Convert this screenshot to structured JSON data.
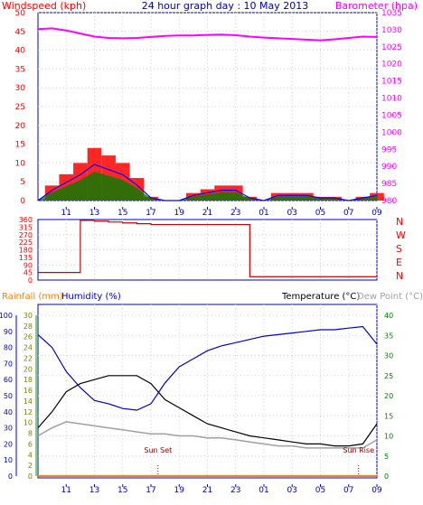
{
  "colors": {
    "windspeed": "#ff0000",
    "barometer": "#ff00ff",
    "wind_blue": "#0000ff",
    "wind_green": "#008000",
    "title": "#0000aa",
    "rainfall": "#ff8000",
    "humidity": "#0000cc",
    "temperature": "#000000",
    "dewpoint": "#a0a0a0",
    "frame": "#0000c0",
    "axis_left": "#808000",
    "direction_labels": "#ff0000"
  },
  "header": {
    "title": "24 hour graph day : 10 May 2013",
    "windspeed_label": "Windspeed (kph)",
    "barometer_label": "Barometer (hpa)"
  },
  "x_ticks": [
    "11",
    "13",
    "15",
    "17",
    "19",
    "21",
    "23",
    "01",
    "03",
    "05",
    "07",
    "09"
  ],
  "chart_data": [
    {
      "type": "line",
      "title": "24 hour graph day : 10 May 2013",
      "ylabel": "Windspeed (kph)",
      "y2label": "Barometer (hpa)",
      "ylim": [
        0,
        50
      ],
      "y2lim": [
        980,
        1035
      ],
      "y_ticks": [
        0,
        5,
        10,
        15,
        20,
        25,
        30,
        35,
        40,
        45,
        50
      ],
      "y2_ticks": [
        980,
        985,
        990,
        995,
        1000,
        1005,
        1010,
        1015,
        1020,
        1025,
        1030,
        1035
      ],
      "x_hours": [
        9,
        10,
        11,
        12,
        13,
        14,
        15,
        16,
        17,
        18,
        19,
        20,
        21,
        22,
        23,
        24,
        25,
        26,
        27,
        28,
        29,
        30,
        31,
        32,
        33
      ],
      "series": [
        {
          "name": "Windspeed (kph)",
          "values": [
            0,
            4,
            7,
            10,
            14,
            12,
            10,
            6,
            1,
            0,
            0,
            2,
            3,
            4,
            4,
            1,
            0,
            2,
            2,
            2,
            1,
            1,
            0,
            1,
            2
          ]
        },
        {
          "name": "Barometer (hpa)",
          "values": [
            1030.2,
            1030.4,
            1029.8,
            1028.9,
            1028.0,
            1027.6,
            1027.5,
            1027.6,
            1027.9,
            1028.2,
            1028.3,
            1028.3,
            1028.5,
            1028.6,
            1028.4,
            1028.0,
            1027.7,
            1027.5,
            1027.3,
            1027.1,
            1026.9,
            1027.2,
            1027.6,
            1028.0,
            1027.9
          ]
        }
      ]
    },
    {
      "type": "line",
      "ylim": [
        0,
        360
      ],
      "y_ticks": [
        0,
        45,
        90,
        135,
        180,
        225,
        270,
        315,
        360
      ],
      "direction_labels": [
        "N",
        "W",
        "S",
        "E",
        "N"
      ],
      "x_hours": [
        9,
        10,
        11,
        12,
        13,
        14,
        15,
        16,
        17,
        18,
        19,
        20,
        21,
        22,
        23,
        24,
        25,
        26,
        27,
        28,
        29,
        30,
        31,
        32,
        33
      ],
      "series": [
        {
          "name": "Wind direction",
          "values": [
            45,
            45,
            45,
            355,
            350,
            345,
            340,
            335,
            330,
            330,
            330,
            330,
            330,
            330,
            330,
            20,
            20,
            20,
            20,
            20,
            20,
            20,
            20,
            20,
            20
          ]
        }
      ]
    },
    {
      "type": "line",
      "labels": {
        "rainfall": "Rainfall (mm)",
        "humidity": "Humidity (%)",
        "temperature": "Temperature (°C)",
        "dewpoint": "Dew Point (°C)",
        "sunset": "Sun Set",
        "sunrise": "Sun Rise"
      },
      "humidity_lim": [
        0,
        100
      ],
      "humidity_ticks": [
        0,
        10,
        20,
        30,
        40,
        50,
        60,
        70,
        80,
        90,
        100
      ],
      "rain_lim": [
        0,
        30
      ],
      "rain_ticks": [
        0,
        2,
        4,
        6,
        8,
        10,
        12,
        14,
        16,
        18,
        20,
        22,
        24,
        26,
        28,
        30
      ],
      "temp_lim": [
        0,
        40
      ],
      "temp_ticks": [
        0,
        5,
        10,
        15,
        20,
        25,
        30,
        35,
        40
      ],
      "x_hours": [
        9,
        10,
        11,
        12,
        13,
        14,
        15,
        16,
        17,
        18,
        19,
        20,
        21,
        22,
        23,
        24,
        25,
        26,
        27,
        28,
        29,
        30,
        31,
        32,
        33
      ],
      "series": [
        {
          "name": "Humidity (%)",
          "values": [
            88,
            80,
            65,
            55,
            47,
            45,
            42,
            41,
            45,
            58,
            68,
            73,
            78,
            81,
            83,
            85,
            87,
            88,
            89,
            90,
            91,
            91,
            92,
            93,
            82
          ]
        },
        {
          "name": "Temperature (°C)",
          "values": [
            12,
            16,
            21,
            23,
            24,
            25,
            25,
            25,
            23,
            19,
            17,
            15,
            13,
            12,
            11,
            10,
            9.5,
            9,
            8.5,
            8,
            8,
            7.5,
            7.5,
            8,
            13
          ]
        },
        {
          "name": "Dew Point (°C)",
          "values": [
            10,
            12,
            13.5,
            13,
            12.5,
            12,
            11.5,
            11,
            10.5,
            10.5,
            10,
            10,
            9.5,
            9.5,
            9,
            8.5,
            8,
            7.5,
            7.5,
            7,
            7,
            7,
            7,
            7,
            9
          ]
        },
        {
          "name": "Rainfall (mm)",
          "values": [
            0,
            0,
            0,
            0,
            0,
            0,
            0,
            0,
            0,
            0,
            0,
            0,
            0,
            0,
            0,
            0,
            0,
            0,
            0,
            0,
            0,
            0,
            0,
            0,
            0
          ]
        }
      ],
      "sunset_hour": 17.5,
      "sunrise_hour": 31.7
    }
  ]
}
